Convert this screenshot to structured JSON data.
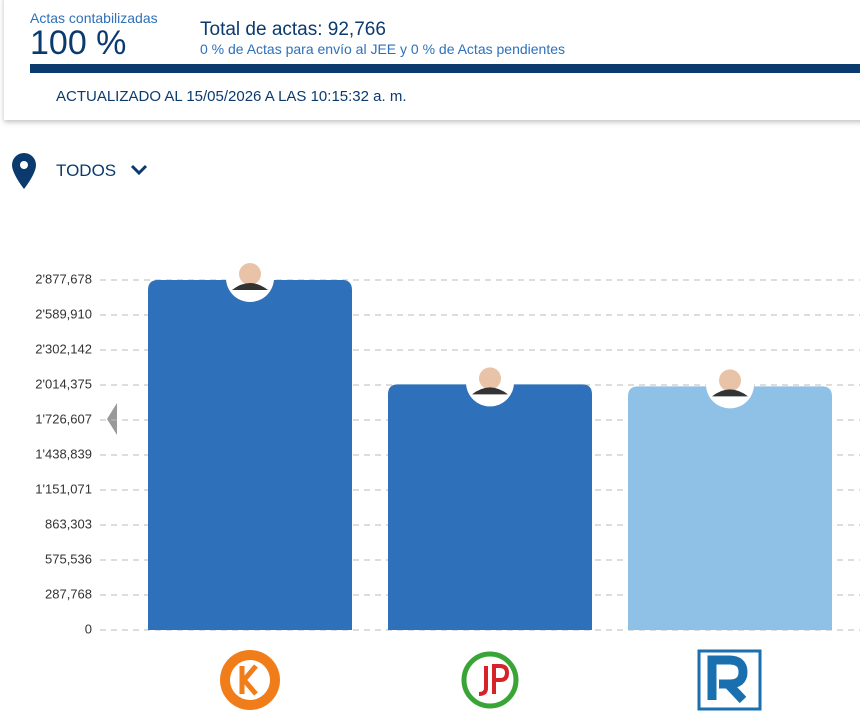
{
  "header": {
    "progress_label": "Actas contabilizadas",
    "progress_value": "100 %",
    "total": "Total de actas: 92,766",
    "subtotal": "0 % de Actas para envío al JEE y 0 % de Actas pendientes",
    "updated": "ACTUALIZADO AL 15/05/2026 A LAS 10:15:32 a. m."
  },
  "filter": {
    "label": "TODOS"
  },
  "chart_data": {
    "type": "bar",
    "categories": [
      null,
      null,
      null
    ],
    "values": [
      2877678,
      2019000,
      2003000
    ],
    "colors": [
      "#2e70b9",
      "#2e70b9",
      "#8fc0e5"
    ],
    "ylim": [
      0,
      2877678
    ],
    "yticks": [
      0,
      {
        "value": 287768,
        "label": "287,768"
      },
      {
        "value": 575536,
        "label": "575,536"
      },
      {
        "value": 863303,
        "label": "863,303"
      },
      {
        "value": 1151071,
        "label": "1'151,071"
      },
      {
        "value": 1438839,
        "label": "1'438,839"
      },
      {
        "value": 1726607,
        "label": "1'726,607"
      },
      {
        "value": 2014375,
        "label": "2'014,375"
      },
      {
        "value": 2302142,
        "label": "2'302,142"
      },
      {
        "value": 2589910,
        "label": "2'589,910"
      },
      {
        "value": 2877678,
        "label": "2'877,678"
      }
    ],
    "grid": true
  }
}
